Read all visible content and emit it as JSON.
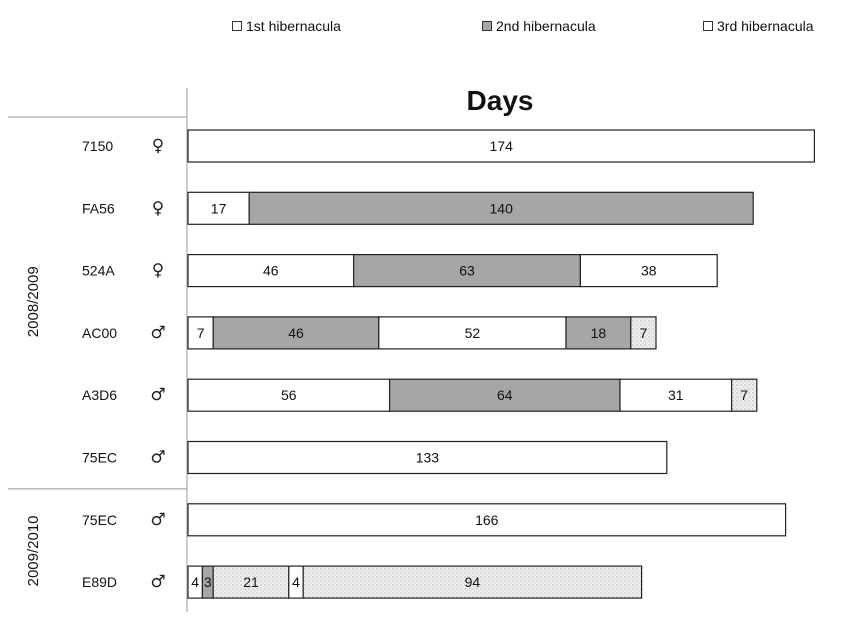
{
  "legend": [
    {
      "label": "1st hibernacula",
      "color": "#ffffff"
    },
    {
      "label": "2nd hibernacula",
      "color": "#a6a6a6"
    },
    {
      "label": "3rd hibernacula",
      "color": "#ffffff"
    }
  ],
  "chart_data": {
    "type": "bar",
    "orientation": "horizontal",
    "stacked": true,
    "title": "Days",
    "segment_colors": {
      "white": "#ffffff",
      "gray": "#a6a6a6",
      "dotted": "#ececec"
    },
    "groups": [
      {
        "label": "2008/2009",
        "rows": [
          0,
          1,
          2,
          3,
          4,
          5
        ]
      },
      {
        "label": "2009/2010",
        "rows": [
          6,
          7
        ]
      }
    ],
    "rows": [
      {
        "id": "7150",
        "sex": "♀",
        "segments": [
          {
            "value": 174,
            "fill": "white"
          }
        ]
      },
      {
        "id": "FA56",
        "sex": "♀",
        "segments": [
          {
            "value": 17,
            "fill": "white"
          },
          {
            "value": 140,
            "fill": "gray"
          }
        ]
      },
      {
        "id": "524A",
        "sex": "♀",
        "segments": [
          {
            "value": 46,
            "fill": "white"
          },
          {
            "value": 63,
            "fill": "gray"
          },
          {
            "value": 38,
            "fill": "white"
          }
        ]
      },
      {
        "id": "AC00",
        "sex": "♂",
        "segments": [
          {
            "value": 7,
            "fill": "white"
          },
          {
            "value": 46,
            "fill": "gray"
          },
          {
            "value": 52,
            "fill": "white"
          },
          {
            "value": 18,
            "fill": "gray"
          },
          {
            "value": 7,
            "fill": "dotted"
          }
        ]
      },
      {
        "id": "A3D6",
        "sex": "♂",
        "segments": [
          {
            "value": 56,
            "fill": "white"
          },
          {
            "value": 64,
            "fill": "gray"
          },
          {
            "value": 31,
            "fill": "white"
          },
          {
            "value": 7,
            "fill": "dotted"
          }
        ]
      },
      {
        "id": "75EC",
        "sex": "♂",
        "segments": [
          {
            "value": 133,
            "fill": "white"
          }
        ]
      },
      {
        "id": "75EC",
        "sex": "♂",
        "segments": [
          {
            "value": 166,
            "fill": "white"
          }
        ]
      },
      {
        "id": "E89D",
        "sex": "♂",
        "segments": [
          {
            "value": 4,
            "fill": "white"
          },
          {
            "value": 3,
            "fill": "gray"
          },
          {
            "value": 21,
            "fill": "dotted"
          },
          {
            "value": 4,
            "fill": "white"
          },
          {
            "value": 94,
            "fill": "dotted"
          }
        ]
      }
    ]
  }
}
